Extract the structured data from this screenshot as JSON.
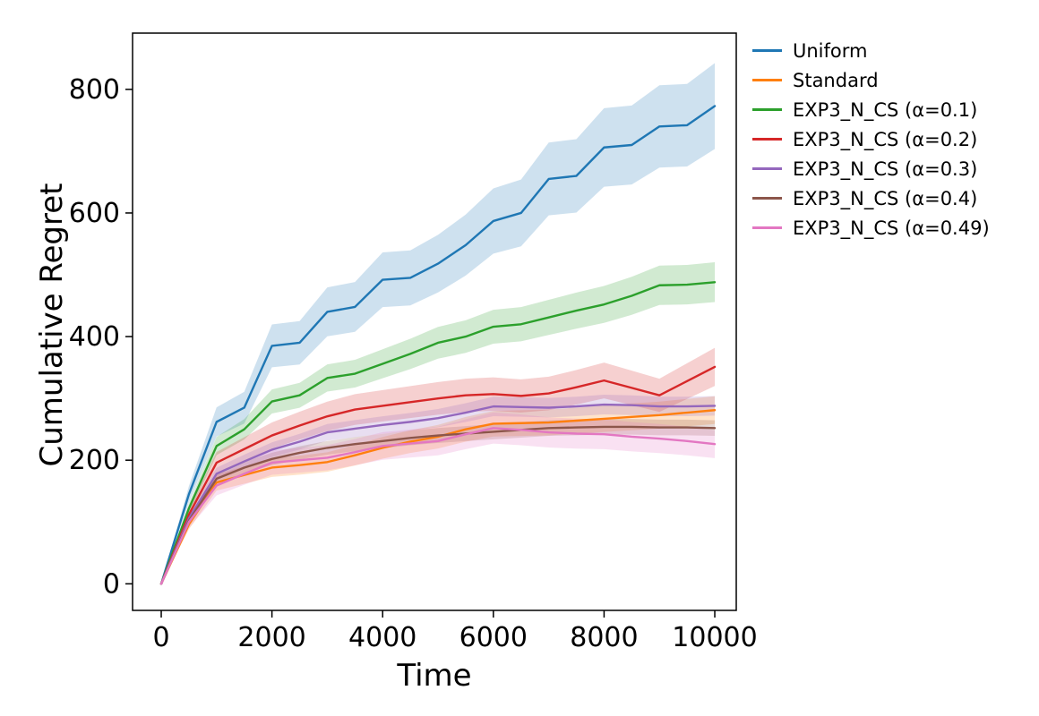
{
  "page": {
    "background": "#ffffff"
  },
  "axes": {
    "xlabel": "Time",
    "ylabel": "Cumulative Regret",
    "xticks": [
      0,
      2000,
      4000,
      6000,
      8000,
      10000
    ],
    "yticks": [
      0,
      200,
      400,
      600,
      800
    ],
    "xlim": [
      -518,
      10388
    ],
    "ylim": [
      -43,
      891
    ],
    "spine_color": "#000000"
  },
  "chart_data": {
    "type": "line",
    "title": "",
    "xlabel": "Time",
    "ylabel": "Cumulative Regret",
    "grid": false,
    "legend_position": "outside upper right",
    "band_opacity": 0.22,
    "x": [
      0,
      500,
      1000,
      1500,
      2000,
      2500,
      3000,
      3500,
      4000,
      4500,
      5000,
      5500,
      6000,
      6500,
      7000,
      7500,
      8000,
      8500,
      9000,
      9500,
      10000
    ],
    "series": [
      {
        "name": "Uniform",
        "color": "#1f77b4",
        "band_fraction": 0.09,
        "values": [
          0,
          145,
          262,
          285,
          385,
          390,
          440,
          448,
          492,
          495,
          518,
          548,
          587,
          600,
          655,
          660,
          706,
          710,
          740,
          742,
          773
        ]
      },
      {
        "name": "Standard",
        "color": "#ff7f0e",
        "band_fraction": 0.08,
        "values": [
          0,
          96,
          164,
          176,
          188,
          192,
          197,
          208,
          220,
          230,
          238,
          250,
          259,
          260,
          261,
          264,
          267,
          270,
          273,
          277,
          281
        ]
      },
      {
        "name": "EXP3_N_CS (α=0.1)",
        "color": "#2ca02c",
        "band_fraction": 0.066,
        "values": [
          0,
          122,
          223,
          250,
          295,
          305,
          333,
          340,
          356,
          372,
          390,
          400,
          416,
          420,
          431,
          442,
          452,
          466,
          483,
          484,
          488
        ]
      },
      {
        "name": "EXP3_N_CS (α=0.2)",
        "color": "#d62728",
        "band_fraction": 0.088,
        "values": [
          0,
          112,
          196,
          218,
          240,
          256,
          271,
          282,
          288,
          294,
          300,
          305,
          307,
          304,
          308,
          318,
          329,
          317,
          305,
          328,
          351
        ]
      },
      {
        "name": "EXP3_N_CS (α=0.3)",
        "color": "#9467bd",
        "band_fraction": 0.055,
        "values": [
          0,
          106,
          178,
          198,
          217,
          230,
          245,
          251,
          257,
          262,
          268,
          277,
          287,
          286,
          285,
          287,
          290,
          289,
          287,
          287,
          288
        ]
      },
      {
        "name": "EXP3_N_CS (α=0.4)",
        "color": "#8c564b",
        "band_fraction": 0.05,
        "values": [
          0,
          102,
          170,
          188,
          202,
          212,
          220,
          226,
          231,
          236,
          240,
          243,
          246,
          249,
          252,
          253,
          254,
          254,
          253,
          253,
          252
        ]
      },
      {
        "name": "EXP3_N_CS (α=0.49)",
        "color": "#e377c2",
        "band_fraction": 0.1,
        "values": [
          0,
          100,
          159,
          178,
          196,
          200,
          204,
          213,
          223,
          227,
          231,
          242,
          252,
          249,
          245,
          243,
          242,
          238,
          235,
          231,
          226
        ]
      }
    ]
  }
}
